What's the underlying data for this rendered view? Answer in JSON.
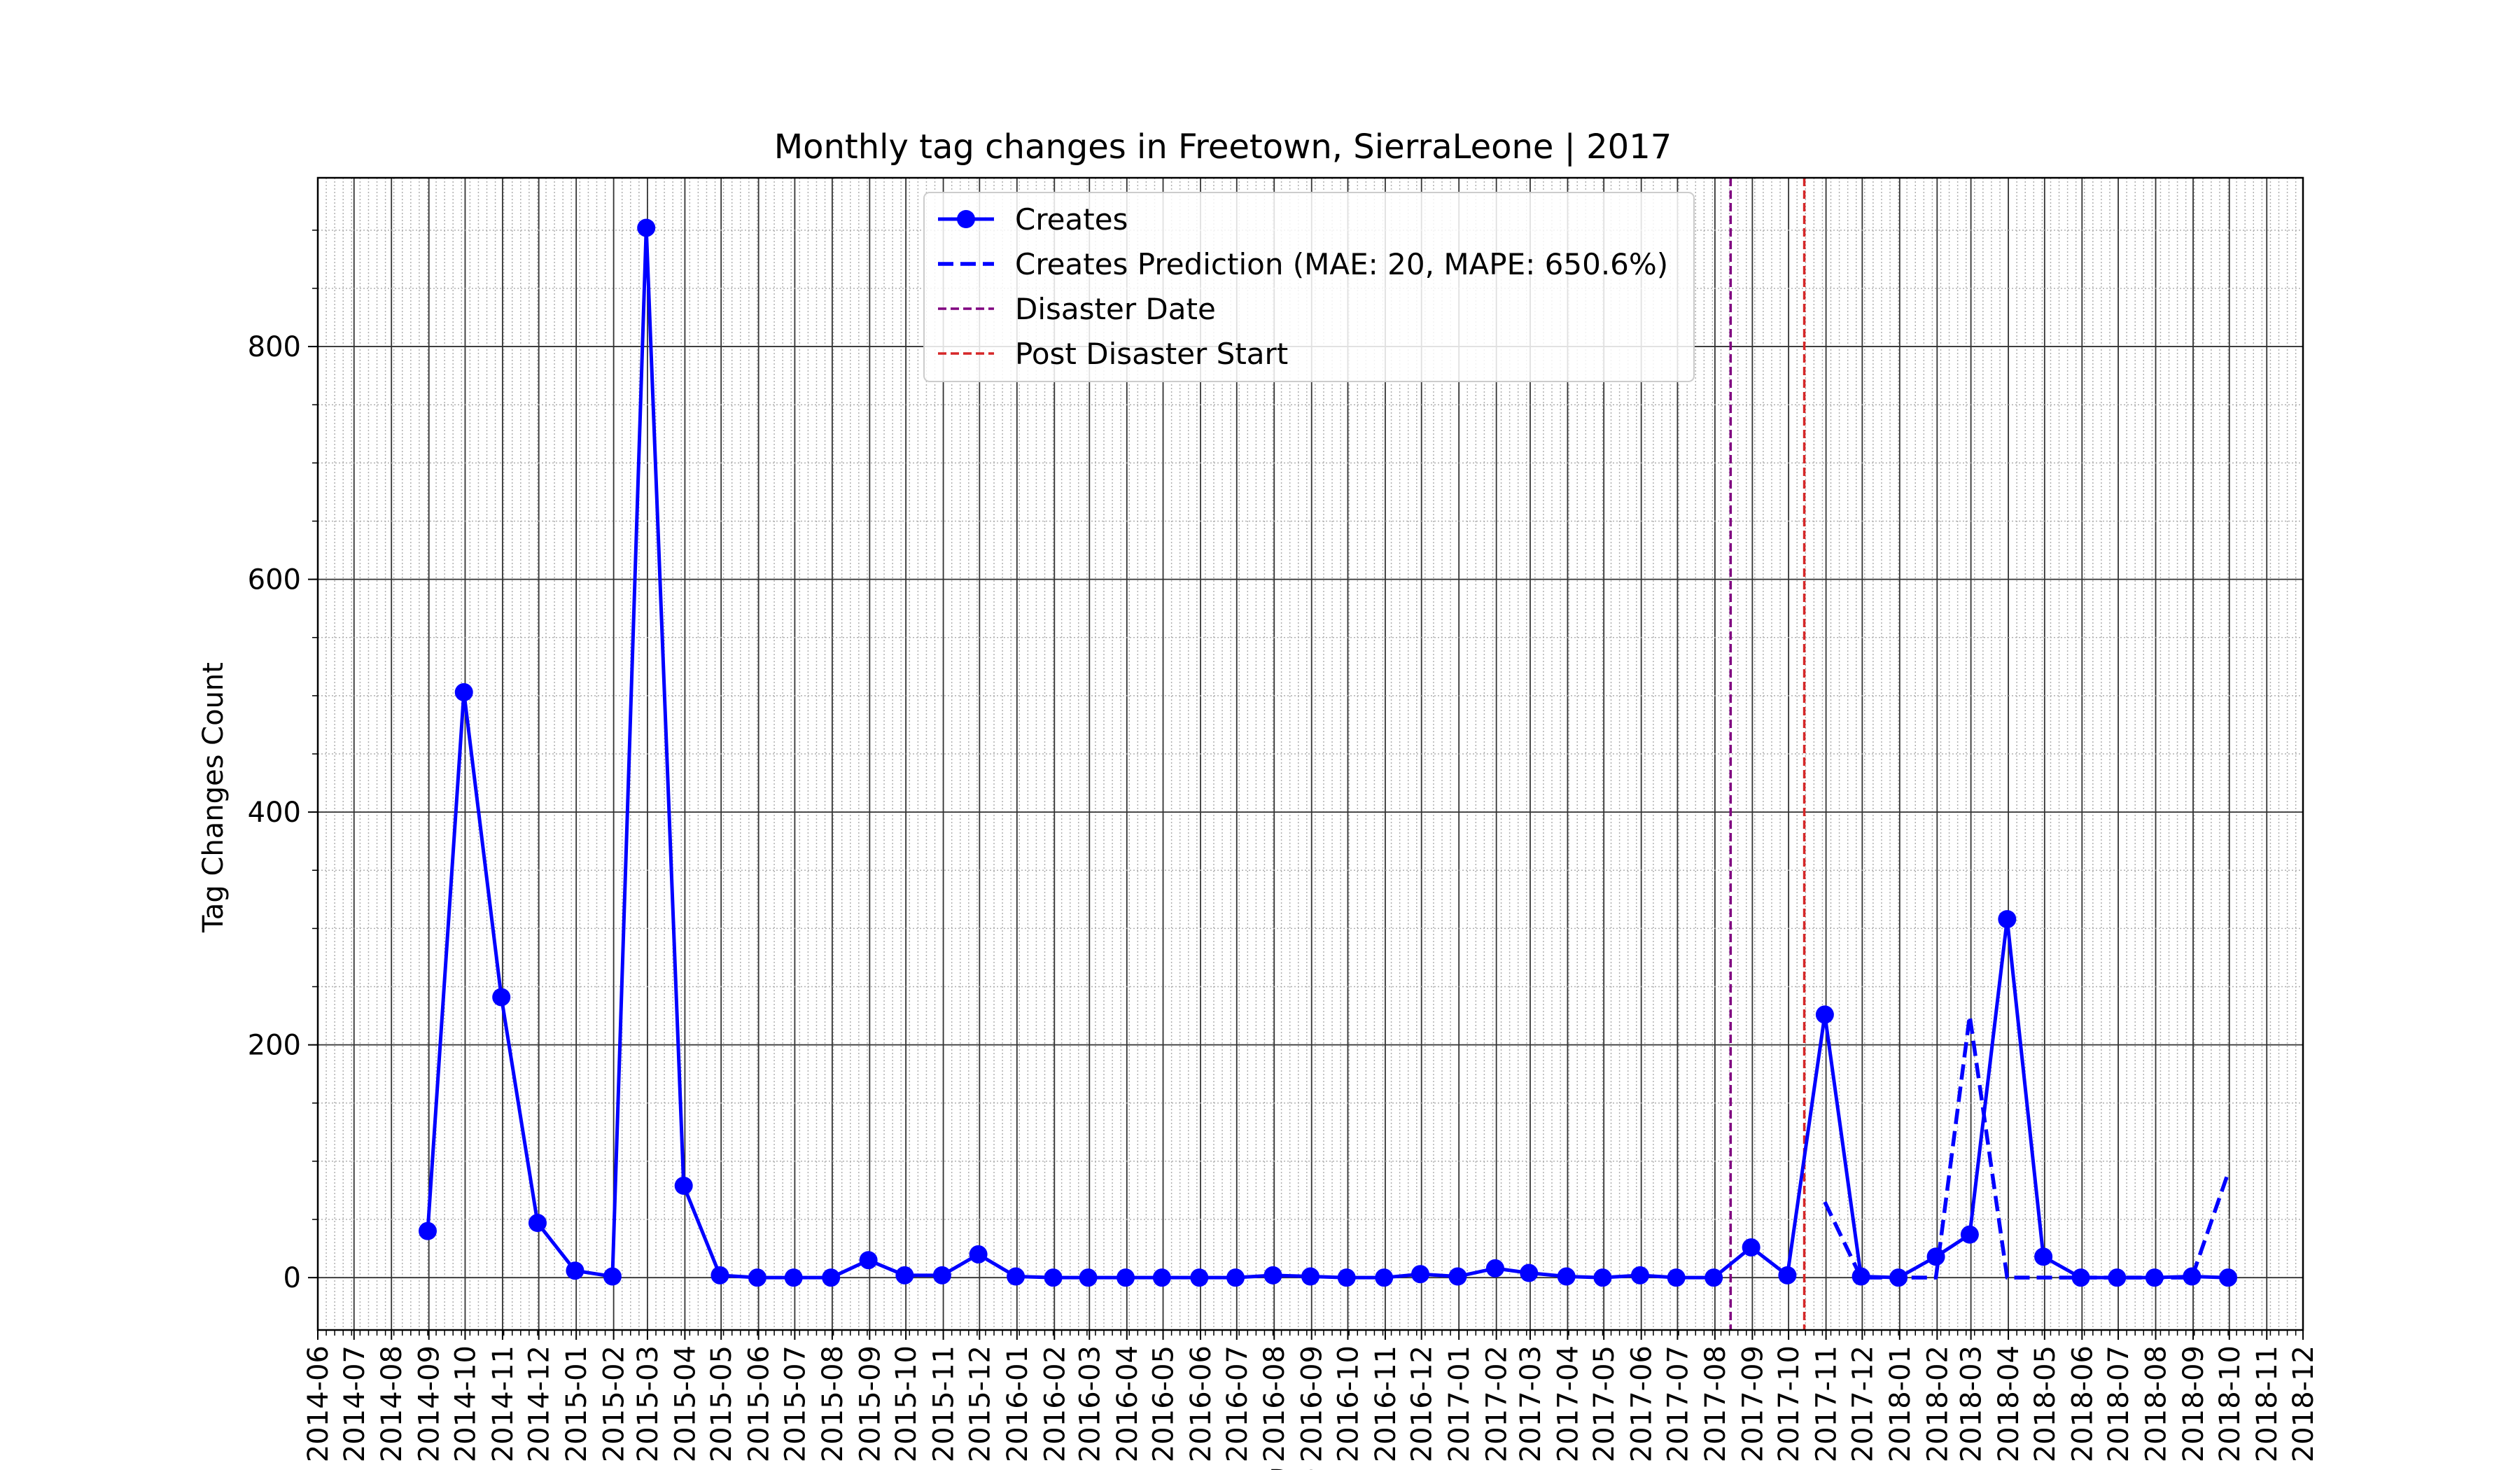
{
  "chart_data": {
    "type": "line",
    "title": "Monthly tag changes in Freetown, SierraLeone | 2017",
    "xlabel": "Date",
    "ylabel": "Tag Changes Count",
    "ylim": [
      -45,
      945
    ],
    "yticks": [
      0,
      200,
      400,
      600,
      800
    ],
    "xlim": [
      "2014-06",
      "2018-12"
    ],
    "x_tick_labels": [
      "2014-06",
      "2014-07",
      "2014-08",
      "2014-09",
      "2014-10",
      "2014-11",
      "2014-12",
      "2015-01",
      "2015-02",
      "2015-03",
      "2015-04",
      "2015-05",
      "2015-06",
      "2015-07",
      "2015-08",
      "2015-09",
      "2015-10",
      "2015-11",
      "2015-12",
      "2016-01",
      "2016-02",
      "2016-03",
      "2016-04",
      "2016-05",
      "2016-06",
      "2016-07",
      "2016-08",
      "2016-09",
      "2016-10",
      "2016-11",
      "2016-12",
      "2017-01",
      "2017-02",
      "2017-03",
      "2017-04",
      "2017-05",
      "2017-06",
      "2017-07",
      "2017-08",
      "2017-09",
      "2017-10",
      "2017-11",
      "2017-12",
      "2018-01",
      "2018-02",
      "2018-03",
      "2018-04",
      "2018-05",
      "2018-06",
      "2018-07",
      "2018-08",
      "2018-09",
      "2018-10",
      "2018-11",
      "2018-12"
    ],
    "grid": "major solid, minor dotted",
    "legend_position": "top-center",
    "series": [
      {
        "name": "Creates",
        "style": "solid-with-circle-markers",
        "color": "#0000ff",
        "points": [
          [
            "2014-08-31",
            40
          ],
          [
            "2014-09-30",
            503
          ],
          [
            "2014-10-31",
            241
          ],
          [
            "2014-11-30",
            47
          ],
          [
            "2014-12-31",
            6
          ],
          [
            "2015-01-31",
            1
          ],
          [
            "2015-02-28",
            902
          ],
          [
            "2015-03-31",
            79
          ],
          [
            "2015-04-30",
            2
          ],
          [
            "2015-05-31",
            0
          ],
          [
            "2015-06-30",
            0
          ],
          [
            "2015-07-31",
            0
          ],
          [
            "2015-08-31",
            15
          ],
          [
            "2015-09-30",
            2
          ],
          [
            "2015-10-31",
            2
          ],
          [
            "2015-11-30",
            20
          ],
          [
            "2015-12-31",
            1
          ],
          [
            "2016-01-31",
            0
          ],
          [
            "2016-02-29",
            0
          ],
          [
            "2016-03-31",
            0
          ],
          [
            "2016-04-30",
            0
          ],
          [
            "2016-05-31",
            0
          ],
          [
            "2016-06-30",
            0
          ],
          [
            "2016-07-31",
            2
          ],
          [
            "2016-08-31",
            1
          ],
          [
            "2016-09-30",
            0
          ],
          [
            "2016-10-31",
            0
          ],
          [
            "2016-11-30",
            3
          ],
          [
            "2016-12-31",
            1
          ],
          [
            "2017-01-31",
            8
          ],
          [
            "2017-02-28",
            4
          ],
          [
            "2017-03-31",
            1
          ],
          [
            "2017-04-30",
            0
          ],
          [
            "2017-05-31",
            2
          ],
          [
            "2017-06-30",
            0
          ],
          [
            "2017-07-31",
            0
          ],
          [
            "2017-08-31",
            26
          ],
          [
            "2017-09-30",
            2
          ],
          [
            "2017-10-31",
            226
          ],
          [
            "2017-11-30",
            1
          ],
          [
            "2017-12-31",
            0
          ],
          [
            "2018-01-31",
            18
          ],
          [
            "2018-02-28",
            37
          ],
          [
            "2018-03-31",
            308
          ],
          [
            "2018-04-30",
            18
          ],
          [
            "2018-05-31",
            0
          ],
          [
            "2018-06-30",
            0
          ],
          [
            "2018-07-31",
            0
          ],
          [
            "2018-08-31",
            1
          ],
          [
            "2018-09-30",
            0
          ]
        ]
      },
      {
        "name": "Creates Prediction (MAE: 20, MAPE: 650.6%)",
        "style": "dashed",
        "color": "#0000ff",
        "points": [
          [
            "2017-10-31",
            65
          ],
          [
            "2017-11-30",
            0
          ],
          [
            "2017-12-31",
            0
          ],
          [
            "2018-01-31",
            0
          ],
          [
            "2018-02-28",
            225
          ],
          [
            "2018-03-31",
            0
          ],
          [
            "2018-04-30",
            0
          ],
          [
            "2018-05-31",
            0
          ],
          [
            "2018-06-30",
            0
          ],
          [
            "2018-07-31",
            0
          ],
          [
            "2018-08-31",
            0
          ],
          [
            "2018-09-30",
            90
          ]
        ]
      }
    ],
    "vertical_lines": [
      {
        "name": "Disaster Date",
        "date": "2017-08-14",
        "color": "#800080",
        "style": "dashed"
      },
      {
        "name": "Post Disaster Start",
        "date": "2017-10-14",
        "color": "#d62728",
        "style": "dashed"
      }
    ]
  }
}
